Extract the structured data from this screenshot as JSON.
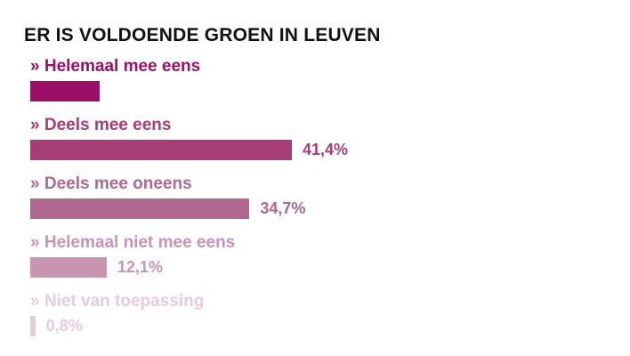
{
  "chart_data": {
    "type": "bar",
    "orientation": "horizontal",
    "title": "ER IS VOLDOENDE GROEN IN LEUVEN",
    "label_prefix": "»",
    "categories": [
      "Helemaal mee eens",
      "Deels mee eens",
      "Deels mee oneens",
      "Helemaal niet mee eens",
      "Niet van toepassing"
    ],
    "values": [
      11.0,
      41.4,
      34.7,
      12.1,
      0.8
    ],
    "value_labels": [
      "",
      "41,4%",
      "34,7%",
      "12,1%",
      "0,8%"
    ],
    "unit": "%",
    "colors": [
      "#9b0f66",
      "#a63d77",
      "#b0688f",
      "#c994b1",
      "#e7cbdb"
    ],
    "xlim": [
      0,
      100
    ],
    "grid": false,
    "legend": "none"
  }
}
